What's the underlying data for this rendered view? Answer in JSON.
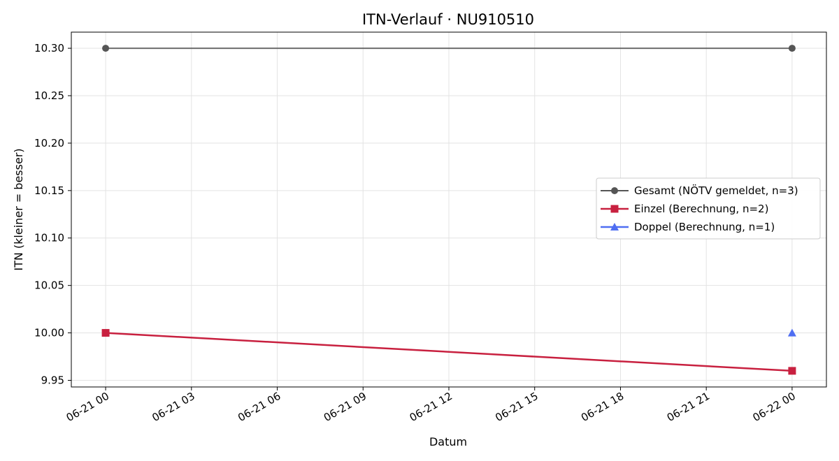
{
  "chart_data": {
    "type": "line",
    "title": "ITN-Verlauf · NU910510",
    "xlabel": "Datum",
    "ylabel": "ITN  (kleiner = besser)",
    "x_ticks": [
      "06-21 00",
      "06-21 03",
      "06-21 06",
      "06-21 09",
      "06-21 12",
      "06-21 15",
      "06-21 18",
      "06-21 21",
      "06-22 00"
    ],
    "y_ticks": [
      "9.95",
      "10.00",
      "10.05",
      "10.10",
      "10.15",
      "10.20",
      "10.25",
      "10.30"
    ],
    "x_range_hours": [
      -1.2,
      25.2
    ],
    "ylim": [
      9.943,
      10.317
    ],
    "grid": true,
    "legend_placement": "center-right",
    "series": [
      {
        "name": "Gesamt (NÖTV gemeldet, n=3)",
        "color": "#555555",
        "marker": "circle",
        "x": [
          "06-21 00",
          "06-22 00"
        ],
        "x_hours": [
          0,
          24
        ],
        "y": [
          10.3,
          10.3
        ]
      },
      {
        "name": "Einzel (Berechnung, n=2)",
        "color": "#c8203f",
        "marker": "square",
        "x": [
          "06-21 00",
          "06-22 00"
        ],
        "x_hours": [
          0,
          24
        ],
        "y": [
          10.0,
          9.96
        ]
      },
      {
        "name": "Doppel (Berechnung, n=1)",
        "color": "#4f6ef2",
        "marker": "triangle",
        "x": [
          "06-22 00"
        ],
        "x_hours": [
          24
        ],
        "y": [
          10.0
        ]
      }
    ]
  }
}
